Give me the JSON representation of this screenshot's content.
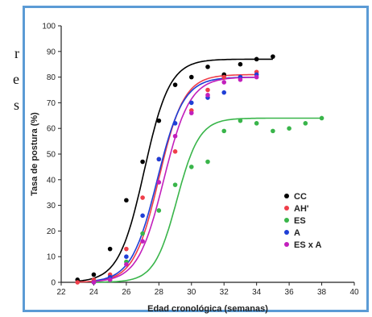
{
  "side_fragments": [
    "r",
    "e",
    "s"
  ],
  "chart_data": {
    "type": "scatter",
    "title": "",
    "xlabel": "Edad cronológica (semanas)",
    "ylabel": "Tasa de postura (%)",
    "xlim": [
      22,
      40
    ],
    "ylim": [
      0,
      100
    ],
    "xticks": [
      "22",
      "24",
      "26",
      "28",
      "30",
      "32",
      "34",
      "36",
      "38",
      "40"
    ],
    "yticks": [
      "0",
      "10",
      "20",
      "30",
      "40",
      "50",
      "60",
      "70",
      "80",
      "90",
      "100"
    ],
    "grid": false,
    "legend_position": "right",
    "series": [
      {
        "name": "CC",
        "color": "#000000",
        "points": [
          [
            23,
            1
          ],
          [
            24,
            3
          ],
          [
            25,
            13
          ],
          [
            26,
            32
          ],
          [
            27,
            47
          ],
          [
            28,
            63
          ],
          [
            29,
            77
          ],
          [
            30,
            80
          ],
          [
            31,
            84
          ],
          [
            32,
            81
          ],
          [
            33,
            85
          ],
          [
            34,
            87
          ],
          [
            35,
            88
          ]
        ],
        "fit": {
          "top": 87,
          "x50": 27.1,
          "slope": 1.28
        }
      },
      {
        "name": "AH'",
        "color": "#ef3e4a",
        "points": [
          [
            23,
            0
          ],
          [
            24,
            1
          ],
          [
            25,
            3
          ],
          [
            26,
            13
          ],
          [
            27,
            33
          ],
          [
            28,
            48
          ],
          [
            29,
            51
          ],
          [
            30,
            67
          ],
          [
            31,
            75
          ],
          [
            32,
            80
          ],
          [
            33,
            80
          ],
          [
            34,
            82
          ]
        ],
        "fit": {
          "top": 81,
          "x50": 28.0,
          "slope": 1.3
        }
      },
      {
        "name": "ES",
        "color": "#39b54a",
        "points": [
          [
            24,
            0
          ],
          [
            25,
            1
          ],
          [
            26,
            8
          ],
          [
            27,
            19
          ],
          [
            28,
            28
          ],
          [
            29,
            38
          ],
          [
            30,
            45
          ],
          [
            31,
            47
          ],
          [
            32,
            59
          ],
          [
            33,
            63
          ],
          [
            34,
            62
          ],
          [
            35,
            59
          ],
          [
            36,
            60
          ],
          [
            37,
            62
          ],
          [
            38,
            64
          ]
        ],
        "fit": {
          "top": 64,
          "x50": 29.1,
          "slope": 1.45
        }
      },
      {
        "name": "A",
        "color": "#1f3fd6",
        "points": [
          [
            24,
            0
          ],
          [
            25,
            2
          ],
          [
            26,
            10
          ],
          [
            27,
            26
          ],
          [
            28,
            48
          ],
          [
            29,
            62
          ],
          [
            30,
            70
          ],
          [
            31,
            72
          ],
          [
            32,
            74
          ],
          [
            33,
            80
          ],
          [
            34,
            81
          ]
        ],
        "fit": {
          "top": 80,
          "x50": 27.9,
          "slope": 1.25
        }
      },
      {
        "name": "ES x A",
        "color": "#c21fbc",
        "points": [
          [
            24,
            0
          ],
          [
            25,
            1
          ],
          [
            26,
            7
          ],
          [
            27,
            16
          ],
          [
            28,
            39
          ],
          [
            29,
            57
          ],
          [
            30,
            66
          ],
          [
            31,
            73
          ],
          [
            32,
            78
          ],
          [
            33,
            79
          ],
          [
            34,
            80
          ]
        ],
        "fit": {
          "top": 80,
          "x50": 28.3,
          "slope": 1.25
        }
      }
    ]
  }
}
